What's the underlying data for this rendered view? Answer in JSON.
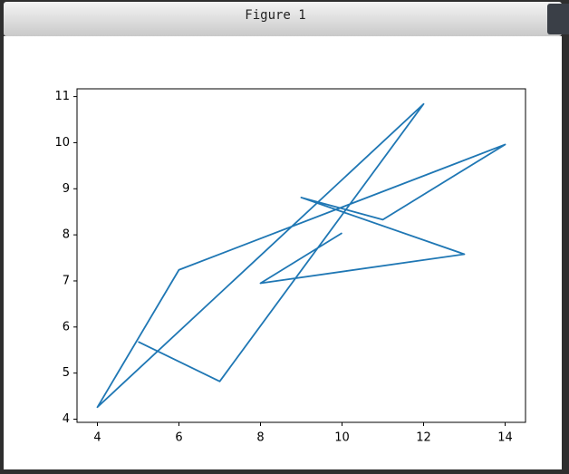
{
  "window": {
    "title": "Figure 1"
  },
  "chart_data": {
    "type": "line",
    "x": [
      10,
      8,
      13,
      9,
      11,
      14,
      6,
      4,
      12,
      7,
      5
    ],
    "series": [
      {
        "color": "#1f77b4",
        "values": [
          8.04,
          6.95,
          7.58,
          8.81,
          8.33,
          9.96,
          7.24,
          4.26,
          10.84,
          4.82,
          5.68
        ]
      }
    ],
    "xlim": [
      3.5,
      14.5
    ],
    "xticks": [
      4,
      6,
      8,
      10,
      12,
      14
    ],
    "ylim": [
      3.931,
      11.169
    ],
    "yticks": [
      4,
      5,
      6,
      7,
      8,
      9,
      10,
      11
    ],
    "grid": false
  }
}
